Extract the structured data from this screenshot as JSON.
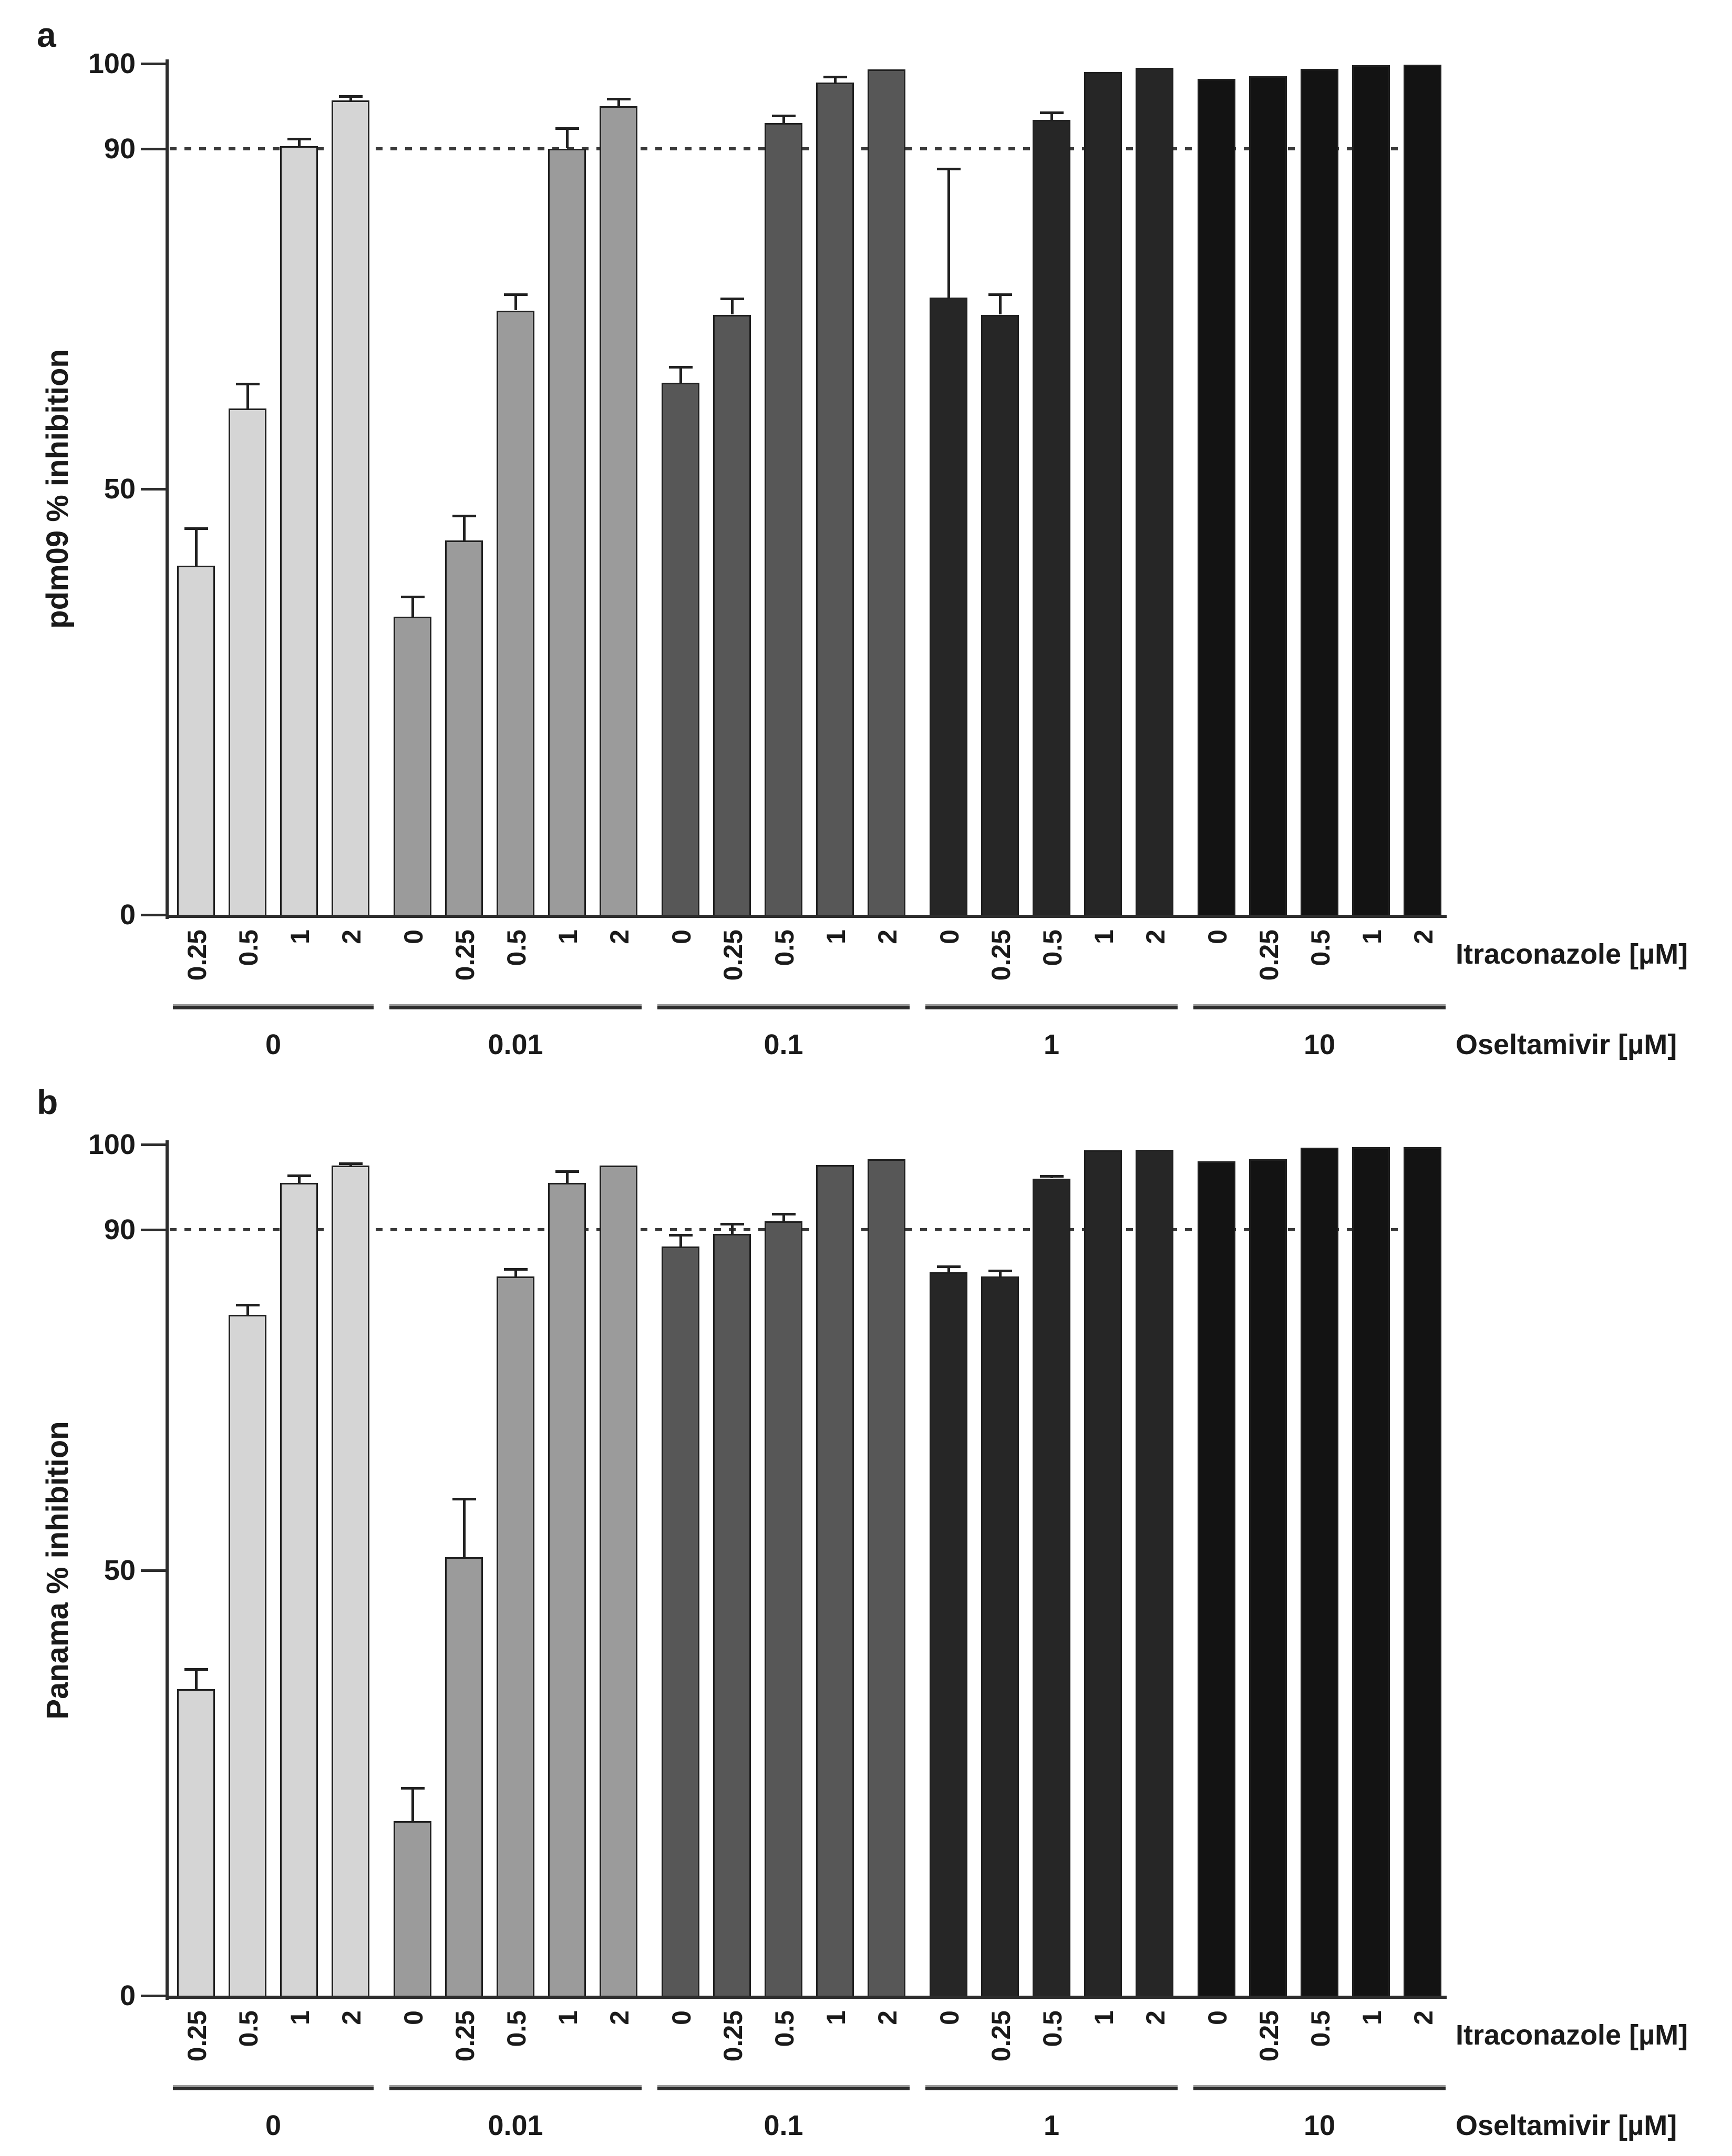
{
  "chart_data": [
    {
      "type": "bar",
      "panel_letter": "a",
      "ylabel": "pdm09 % inhibition",
      "ylim": [
        0,
        100
      ],
      "ytick_labels": [
        "100",
        "90",
        "50",
        "0"
      ],
      "ytick_values": [
        100,
        90,
        50,
        0
      ],
      "refline": 90,
      "refline_style": "dotted",
      "grid": false,
      "legend": "none",
      "x_axis_right_label": "Itraconazole [µM]",
      "group_axis_right_label": "Oseltamivir [µM]",
      "group_colors": [
        "#d5d5d5",
        "#9b9b9b",
        "#575757",
        "#262626",
        "#131313"
      ],
      "groups": [
        {
          "oseltamivir": "0",
          "bars": [
            {
              "itraconazole": "0.25",
              "value": 41,
              "error": 4.5
            },
            {
              "itraconazole": "0.5",
              "value": 59.5,
              "error": 3
            },
            {
              "itraconazole": "1",
              "value": 90.3,
              "error": 1
            },
            {
              "itraconazole": "2",
              "value": 95.7,
              "error": 0.6
            }
          ]
        },
        {
          "oseltamivir": "0.01",
          "bars": [
            {
              "itraconazole": "0",
              "value": 35,
              "error": 2.5
            },
            {
              "itraconazole": "0.25",
              "value": 44,
              "error": 3
            },
            {
              "itraconazole": "0.5",
              "value": 71,
              "error": 2
            },
            {
              "itraconazole": "1",
              "value": 90,
              "error": 2.5
            },
            {
              "itraconazole": "2",
              "value": 95,
              "error": 1
            }
          ]
        },
        {
          "oseltamivir": "0.1",
          "bars": [
            {
              "itraconazole": "0",
              "value": 62.5,
              "error": 2
            },
            {
              "itraconazole": "0.25",
              "value": 70.5,
              "error": 2
            },
            {
              "itraconazole": "0.5",
              "value": 93,
              "error": 1
            },
            {
              "itraconazole": "1",
              "value": 97.8,
              "error": 0.8
            },
            {
              "itraconazole": "2",
              "value": 99.3,
              "error": 0
            }
          ]
        },
        {
          "oseltamivir": "1",
          "bars": [
            {
              "itraconazole": "0",
              "value": 72.5,
              "error": 15.3
            },
            {
              "itraconazole": "0.25",
              "value": 70.5,
              "error": 2.5
            },
            {
              "itraconazole": "0.5",
              "value": 93.4,
              "error": 1
            },
            {
              "itraconazole": "1",
              "value": 99,
              "error": 0
            },
            {
              "itraconazole": "2",
              "value": 99.5,
              "error": 0
            }
          ]
        },
        {
          "oseltamivir": "10",
          "bars": [
            {
              "itraconazole": "0",
              "value": 98.2,
              "error": 0
            },
            {
              "itraconazole": "0.25",
              "value": 98.5,
              "error": 0
            },
            {
              "itraconazole": "0.5",
              "value": 99.4,
              "error": 0
            },
            {
              "itraconazole": "1",
              "value": 99.8,
              "error": 0
            },
            {
              "itraconazole": "2",
              "value": 99.9,
              "error": 0
            }
          ]
        }
      ]
    },
    {
      "type": "bar",
      "panel_letter": "b",
      "ylabel": "Panama % inhibition",
      "ylim": [
        0,
        100
      ],
      "ytick_labels": [
        "100",
        "90",
        "50",
        "0"
      ],
      "ytick_values": [
        100,
        90,
        50,
        0
      ],
      "refline": 90,
      "refline_style": "dotted",
      "grid": false,
      "legend": "none",
      "x_axis_right_label": "Itraconazole [µM]",
      "group_axis_right_label": "Oseltamivir [µM]",
      "group_colors": [
        "#d5d5d5",
        "#9b9b9b",
        "#575757",
        "#262626",
        "#131313"
      ],
      "groups": [
        {
          "oseltamivir": "0",
          "bars": [
            {
              "itraconazole": "0.25",
              "value": 36,
              "error": 2.5
            },
            {
              "itraconazole": "0.5",
              "value": 80,
              "error": 1.3
            },
            {
              "itraconazole": "1",
              "value": 95.5,
              "error": 1
            },
            {
              "itraconazole": "2",
              "value": 97.5,
              "error": 0.4
            }
          ]
        },
        {
          "oseltamivir": "0.01",
          "bars": [
            {
              "itraconazole": "0",
              "value": 20.5,
              "error": 4
            },
            {
              "itraconazole": "0.25",
              "value": 51.5,
              "error": 7
            },
            {
              "itraconazole": "0.5",
              "value": 84.5,
              "error": 1
            },
            {
              "itraconazole": "1",
              "value": 95.5,
              "error": 1.5
            },
            {
              "itraconazole": "2",
              "value": 97.5,
              "error": 0
            }
          ]
        },
        {
          "oseltamivir": "0.1",
          "bars": [
            {
              "itraconazole": "0",
              "value": 88,
              "error": 1.5
            },
            {
              "itraconazole": "0.25",
              "value": 89.5,
              "error": 1.3
            },
            {
              "itraconazole": "0.5",
              "value": 91,
              "error": 1
            },
            {
              "itraconazole": "1",
              "value": 97.6,
              "error": 0
            },
            {
              "itraconazole": "2",
              "value": 98.3,
              "error": 0
            }
          ]
        },
        {
          "oseltamivir": "1",
          "bars": [
            {
              "itraconazole": "0",
              "value": 85,
              "error": 0.8
            },
            {
              "itraconazole": "0.25",
              "value": 84.5,
              "error": 0.8
            },
            {
              "itraconazole": "0.5",
              "value": 96,
              "error": 0.4
            },
            {
              "itraconazole": "1",
              "value": 99.3,
              "error": 0
            },
            {
              "itraconazole": "2",
              "value": 99.4,
              "error": 0
            }
          ]
        },
        {
          "oseltamivir": "10",
          "bars": [
            {
              "itraconazole": "0",
              "value": 98,
              "error": 0
            },
            {
              "itraconazole": "0.25",
              "value": 98.3,
              "error": 0
            },
            {
              "itraconazole": "0.5",
              "value": 99.6,
              "error": 0
            },
            {
              "itraconazole": "1",
              "value": 99.7,
              "error": 0
            },
            {
              "itraconazole": "2",
              "value": 99.7,
              "error": 0
            }
          ]
        }
      ]
    }
  ]
}
